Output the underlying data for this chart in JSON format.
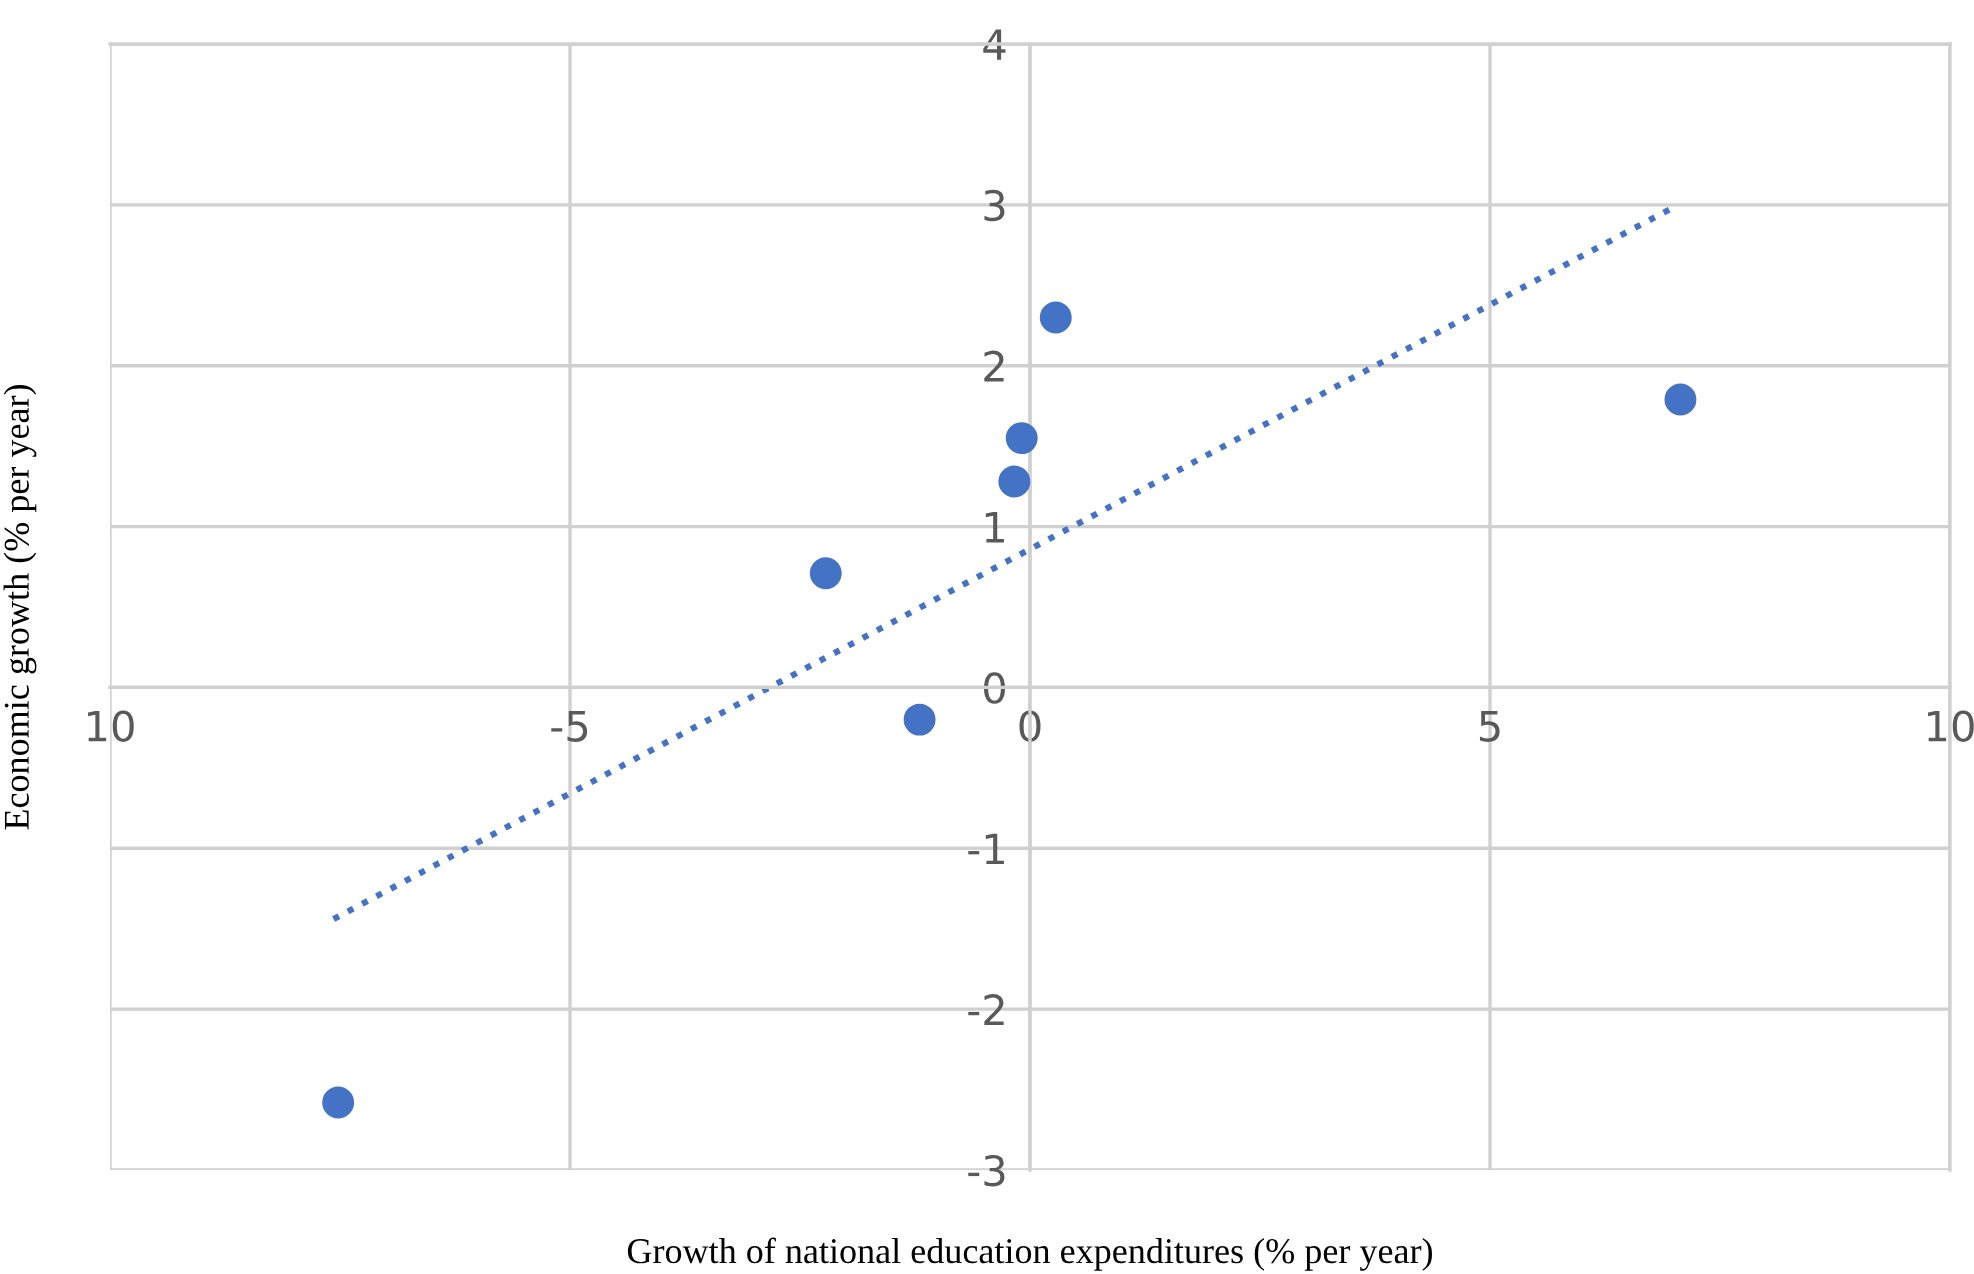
{
  "chart_data": {
    "type": "scatter",
    "xlabel": "Growth of national education expenditures (% per year)",
    "ylabel": "Economic growth (% per year)",
    "series": [
      {
        "color": "#4472c4",
        "marker": "circle",
        "x": [
          -7.52,
          -2.22,
          -1.2,
          -0.17,
          -0.09,
          0.28,
          7.07
        ],
        "values": [
          -2.58,
          0.71,
          -0.2,
          1.28,
          1.55,
          2.3,
          1.79
        ]
      },
      {
        "type": "line",
        "color": "#4472c4",
        "line_style": "dotted",
        "marker": "none",
        "x": [
          -7.57,
          6.98
        ],
        "values": [
          -1.44,
          2.98
        ]
      }
    ],
    "xlim": [
      -10,
      10
    ],
    "ylim": [
      -3,
      4
    ],
    "xticks": [
      {
        "value": -10,
        "label": "10"
      },
      -5,
      0,
      5,
      10
    ],
    "yticks": [
      -3,
      -2,
      -1,
      0,
      1,
      2,
      3,
      4
    ],
    "grid": true
  }
}
